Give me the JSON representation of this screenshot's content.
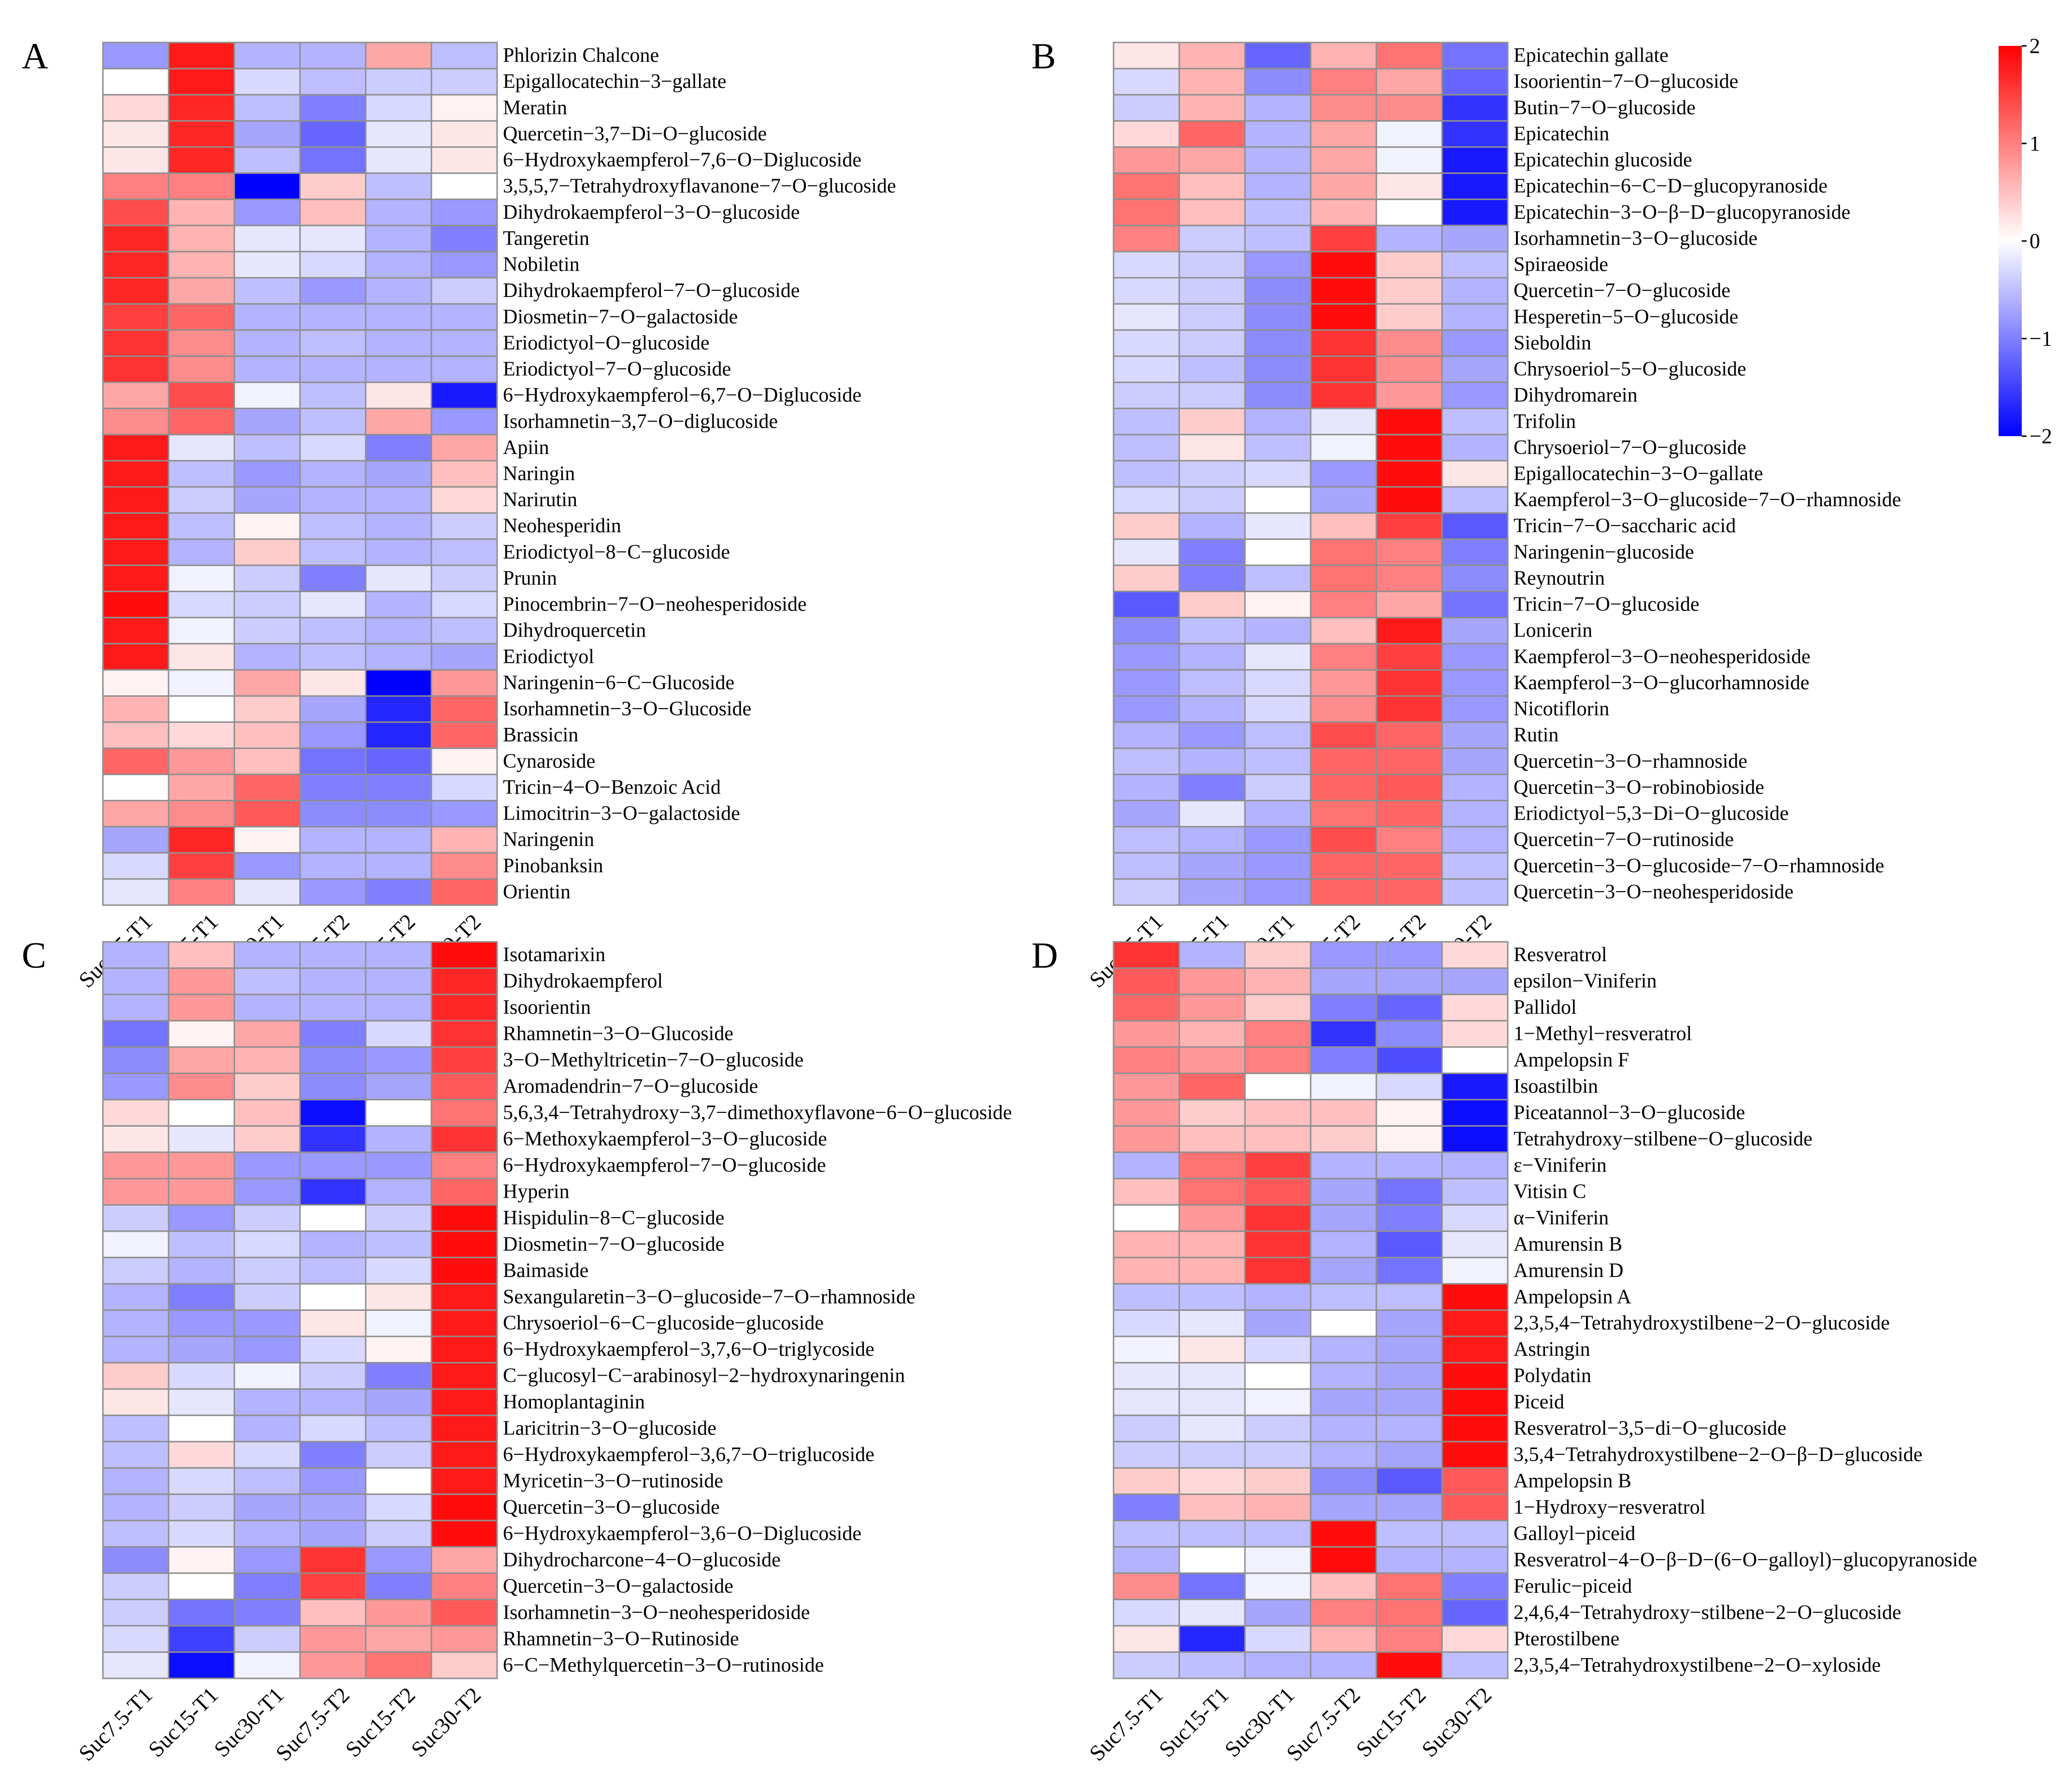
{
  "chart_data": [
    {
      "type": "heatmap",
      "panel_label": "A",
      "columns": [
        "Suc7.5-T1",
        "Suc15-T1",
        "Suc30-T1",
        "Suc7.5-T2",
        "Suc15-T2",
        "Suc30-T2"
      ],
      "rows": [
        "Phlorizin Chalcone",
        "Epigallocatechin−3−gallate",
        "Meratin",
        "Quercetin−3,7−Di−O−glucoside",
        "6−Hydroxykaempferol−7,6−O−Diglucoside",
        "3,5,5,7−Tetrahydroxyflavanone−7−O−glucoside",
        "Dihydrokaempferol−3−O−glucoside",
        "Tangeretin",
        "Nobiletin",
        "Dihydrokaempferol−7−O−glucoside",
        "Diosmetin−7−O−galactoside",
        "Eriodictyol−O−glucoside",
        "Eriodictyol−7−O−glucoside",
        "6−Hydroxykaempferol−6,7−O−Diglucoside",
        "Isorhamnetin−3,7−O−diglucoside",
        "Apiin",
        "Naringin",
        "Narirutin",
        "Neohesperidin",
        "Eriodictyol−8−C−glucoside",
        "Prunin",
        "Pinocembrin−7−O−neohesperidoside",
        "Dihydroquercetin",
        "Eriodictyol",
        "Naringenin−6−C−Glucoside",
        "Isorhamnetin−3−O−Glucoside",
        "Brassicin",
        "Cynaroside",
        "Tricin−4−O−Benzoic Acid",
        "Limocitrin−3−O−galactoside",
        "Naringenin",
        "Pinobanksin",
        "Orientin"
      ],
      "values": [
        [
          -0.8,
          1.8,
          -0.6,
          -0.6,
          0.7,
          -0.5
        ],
        [
          0.0,
          1.8,
          -0.3,
          -0.5,
          -0.4,
          -0.4
        ],
        [
          0.3,
          1.7,
          -0.5,
          -1.0,
          -0.3,
          0.1
        ],
        [
          0.2,
          1.7,
          -0.7,
          -1.2,
          -0.2,
          0.2
        ],
        [
          0.2,
          1.7,
          -0.5,
          -1.1,
          -0.2,
          0.2
        ],
        [
          1.0,
          1.0,
          -2.0,
          0.4,
          -0.5,
          0.0
        ],
        [
          1.4,
          0.6,
          -0.8,
          0.5,
          -0.6,
          -0.8
        ],
        [
          1.7,
          0.6,
          -0.2,
          -0.2,
          -0.6,
          -1.0
        ],
        [
          1.7,
          0.6,
          -0.2,
          -0.3,
          -0.6,
          -0.8
        ],
        [
          1.7,
          0.7,
          -0.5,
          -0.8,
          -0.6,
          -0.4
        ],
        [
          1.5,
          1.2,
          -0.6,
          -0.6,
          -0.6,
          -0.6
        ],
        [
          1.6,
          0.9,
          -0.6,
          -0.5,
          -0.6,
          -0.6
        ],
        [
          1.6,
          0.9,
          -0.6,
          -0.6,
          -0.6,
          -0.6
        ],
        [
          0.7,
          1.4,
          -0.1,
          -0.5,
          0.2,
          -1.8
        ],
        [
          0.9,
          1.2,
          -0.7,
          -0.5,
          0.7,
          -0.8
        ],
        [
          1.8,
          -0.2,
          -0.5,
          -0.3,
          -1.0,
          0.7
        ],
        [
          1.8,
          -0.5,
          -0.8,
          -0.6,
          -0.7,
          0.5
        ],
        [
          1.8,
          -0.4,
          -0.7,
          -0.6,
          -0.6,
          0.3
        ],
        [
          1.8,
          -0.5,
          0.1,
          -0.5,
          -0.6,
          -0.4
        ],
        [
          1.8,
          -0.6,
          0.4,
          -0.5,
          -0.6,
          -0.5
        ],
        [
          1.8,
          -0.1,
          -0.4,
          -1.0,
          -0.2,
          -0.4
        ],
        [
          1.9,
          -0.3,
          -0.4,
          -0.2,
          -0.6,
          -0.3
        ],
        [
          1.8,
          -0.1,
          -0.4,
          -0.5,
          -0.6,
          -0.5
        ],
        [
          1.8,
          0.2,
          -0.6,
          -0.5,
          -0.6,
          -0.7
        ],
        [
          0.1,
          -0.1,
          0.7,
          0.2,
          -2.0,
          0.8
        ],
        [
          0.6,
          0.0,
          0.4,
          -0.7,
          -1.7,
          1.2
        ],
        [
          0.5,
          0.3,
          0.5,
          -0.8,
          -1.7,
          1.2
        ],
        [
          1.2,
          0.8,
          0.5,
          -1.1,
          -1.2,
          0.1
        ],
        [
          0.0,
          0.7,
          1.2,
          -1.0,
          -1.0,
          -0.3
        ],
        [
          0.7,
          0.9,
          1.3,
          -0.9,
          -0.9,
          -0.8
        ],
        [
          -0.7,
          1.7,
          0.1,
          -0.6,
          -0.6,
          0.6
        ],
        [
          -0.3,
          1.5,
          -0.8,
          -0.6,
          -0.6,
          0.9
        ],
        [
          -0.2,
          1.0,
          -0.2,
          -0.8,
          -1.0,
          1.2
        ]
      ]
    },
    {
      "type": "heatmap",
      "panel_label": "B",
      "columns": [
        "Suc7.5-T1",
        "Suc15-T1",
        "Suc30-T1",
        "Suc7.5-T2",
        "Suc15-T2",
        "Suc30-T2"
      ],
      "rows": [
        "Epicatechin gallate",
        "Isoorientin−7−O−glucoside",
        "Butin−7−O−glucoside",
        "Epicatechin",
        "Epicatechin glucoside",
        "Epicatechin−6−C−D−glucopyranoside",
        "Epicatechin−3−O−β−D−glucopyranoside",
        "Isorhamnetin−3−O−glucoside",
        "Spiraeoside",
        "Quercetin−7−O−glucoside",
        "Hesperetin−5−O−glucoside",
        "Sieboldin",
        "Chrysoeriol−5−O−glucoside",
        "Dihydromarein",
        "Trifolin",
        "Chrysoeriol−7−O−glucoside",
        "Epigallocatechin−3−O−gallate",
        "Kaempferol−3−O−glucoside−7−O−rhamnoside",
        "Tricin−7−O−saccharic acid",
        "Naringenin−glucoside",
        "Reynoutrin",
        "Tricin−7−O−glucoside",
        "Lonicerin",
        "Kaempferol−3−O−neohesperidoside",
        "Kaempferol−3−O−glucorhamnoside",
        "Nicotiflorin",
        "Rutin",
        "Quercetin−3−O−rhamnoside",
        "Quercetin−3−O−robinobioside",
        "Eriodictyol−5,3−Di−O−glucoside",
        "Quercetin−7−O−rutinoside",
        "Quercetin−3−O−glucoside−7−O−rhamnoside",
        "Quercetin−3−O−neohesperidoside"
      ],
      "values": [
        [
          0.2,
          0.6,
          -1.2,
          0.6,
          1.1,
          -1.1
        ],
        [
          -0.3,
          0.6,
          -0.9,
          1.0,
          0.7,
          -1.2
        ],
        [
          -0.4,
          0.6,
          -0.6,
          0.9,
          0.9,
          -1.6
        ],
        [
          0.3,
          1.2,
          -0.6,
          0.7,
          -0.1,
          -1.6
        ],
        [
          0.8,
          0.7,
          -0.6,
          0.7,
          -0.1,
          -1.8
        ],
        [
          1.1,
          0.5,
          -0.6,
          0.7,
          0.2,
          -1.8
        ],
        [
          1.1,
          0.5,
          -0.5,
          0.6,
          0.0,
          -1.8
        ],
        [
          1.0,
          -0.4,
          -0.5,
          1.5,
          -0.6,
          -0.7
        ],
        [
          -0.3,
          -0.4,
          -0.8,
          1.9,
          0.4,
          -0.5
        ],
        [
          -0.3,
          -0.4,
          -0.9,
          1.9,
          0.4,
          -0.6
        ],
        [
          -0.2,
          -0.4,
          -0.9,
          1.9,
          0.4,
          -0.6
        ],
        [
          -0.3,
          -0.4,
          -0.9,
          1.6,
          0.9,
          -0.8
        ],
        [
          -0.3,
          -0.5,
          -0.9,
          1.6,
          0.9,
          -0.7
        ],
        [
          -0.4,
          -0.4,
          -0.9,
          1.6,
          0.8,
          -0.8
        ],
        [
          -0.5,
          0.4,
          -0.6,
          -0.2,
          1.9,
          -0.5
        ],
        [
          -0.5,
          0.2,
          -0.5,
          -0.1,
          1.9,
          -0.6
        ],
        [
          -0.5,
          -0.4,
          -0.3,
          -0.8,
          1.9,
          0.2
        ],
        [
          -0.3,
          -0.4,
          0.0,
          -0.7,
          1.9,
          -0.5
        ],
        [
          0.4,
          -0.6,
          -0.2,
          0.5,
          1.5,
          -1.3
        ],
        [
          -0.2,
          -1.0,
          0.0,
          1.1,
          1.0,
          -1.0
        ],
        [
          0.4,
          -1.0,
          -0.5,
          1.1,
          1.0,
          -0.9
        ],
        [
          -1.3,
          0.4,
          0.1,
          1.0,
          0.7,
          -1.1
        ],
        [
          -0.9,
          -0.5,
          -0.6,
          0.5,
          1.8,
          -0.7
        ],
        [
          -0.8,
          -0.6,
          -0.2,
          1.0,
          1.5,
          -0.8
        ],
        [
          -0.8,
          -0.5,
          -0.3,
          0.8,
          1.6,
          -0.8
        ],
        [
          -0.8,
          -0.6,
          -0.3,
          0.9,
          1.6,
          -0.8
        ],
        [
          -0.6,
          -0.8,
          -0.5,
          1.4,
          1.2,
          -0.7
        ],
        [
          -0.5,
          -0.6,
          -0.5,
          1.2,
          1.2,
          -0.7
        ],
        [
          -0.6,
          -1.0,
          -0.4,
          1.2,
          1.3,
          -0.6
        ],
        [
          -0.7,
          -0.2,
          -0.6,
          1.1,
          1.2,
          -0.6
        ],
        [
          -0.5,
          -0.6,
          -0.8,
          1.4,
          1.0,
          -0.6
        ],
        [
          -0.5,
          -0.7,
          -0.8,
          1.2,
          1.2,
          -0.5
        ],
        [
          -0.4,
          -0.7,
          -0.8,
          1.2,
          1.2,
          -0.5
        ]
      ]
    },
    {
      "type": "heatmap",
      "panel_label": "C",
      "columns": [
        "Suc7.5-T1",
        "Suc15-T1",
        "Suc30-T1",
        "Suc7.5-T2",
        "Suc15-T2",
        "Suc30-T2"
      ],
      "rows": [
        "Isotamarixin",
        "Dihydrokaempferol",
        "Isoorientin",
        "Rhamnetin−3−O−Glucoside",
        "3−O−Methyltricetin−7−O−glucoside",
        "Aromadendrin−7−O−glucoside",
        "5,6,3,4−Tetrahydroxy−3,7−dimethoxyflavone−6−O−glucoside",
        "6−Methoxykaempferol−3−O−glucoside",
        "6−Hydroxykaempferol−7−O−glucoside",
        "Hyperin",
        "Hispidulin−8−C−glucoside",
        "Diosmetin−7−O−glucoside",
        "Baimaside",
        "Sexangularetin−3−O−glucoside−7−O−rhamnoside",
        "Chrysoeriol−6−C−glucoside−glucoside",
        "6−Hydroxykaempferol−3,7,6−O−triglycoside",
        "C−glucosyl−C−arabinosyl−2−hydroxynaringenin",
        "Homoplantaginin",
        "Laricitrin−3−O−glucoside",
        "6−Hydroxykaempferol−3,6,7−O−triglucoside",
        "Myricetin−3−O−rutinoside",
        "Quercetin−3−O−glucoside",
        "6−Hydroxykaempferol−3,6−O−Diglucoside",
        "Dihydrocharcone−4−O−glucoside",
        "Quercetin−3−O−galactoside",
        "Isorhamnetin−3−O−neohesperidoside",
        "Rhamnetin−3−O−Rutinoside",
        "6−C−Methylquercetin−3−O−rutinoside"
      ],
      "values": [
        [
          -0.6,
          0.5,
          -0.6,
          -0.6,
          -0.6,
          1.9
        ],
        [
          -0.6,
          0.8,
          -0.5,
          -0.6,
          -0.6,
          1.7
        ],
        [
          -0.6,
          0.8,
          -0.6,
          -0.6,
          -0.6,
          1.7
        ],
        [
          -1.1,
          0.1,
          0.7,
          -1.0,
          -0.3,
          1.6
        ],
        [
          -0.9,
          0.7,
          0.6,
          -0.9,
          -0.8,
          1.5
        ],
        [
          -0.8,
          0.9,
          0.4,
          -0.9,
          -0.7,
          1.3
        ],
        [
          0.3,
          0.0,
          0.5,
          -1.9,
          0.0,
          1.1
        ],
        [
          0.2,
          -0.2,
          0.4,
          -1.6,
          -0.6,
          1.6
        ],
        [
          0.8,
          0.8,
          -0.8,
          -0.8,
          -0.8,
          1.0
        ],
        [
          0.8,
          0.8,
          -0.8,
          -1.6,
          -0.6,
          1.2
        ],
        [
          -0.4,
          -0.8,
          -0.4,
          0.0,
          -0.4,
          1.9
        ],
        [
          -0.1,
          -0.5,
          -0.3,
          -0.6,
          -0.5,
          1.9
        ],
        [
          -0.4,
          -0.6,
          -0.4,
          -0.5,
          -0.3,
          1.9
        ],
        [
          -0.6,
          -1.0,
          -0.4,
          0.0,
          0.2,
          1.8
        ],
        [
          -0.6,
          -0.8,
          -0.8,
          0.2,
          -0.1,
          1.8
        ],
        [
          -0.6,
          -0.7,
          -0.8,
          -0.3,
          0.1,
          1.8
        ],
        [
          0.4,
          -0.3,
          -0.1,
          -0.4,
          -1.0,
          1.8
        ],
        [
          0.2,
          -0.2,
          -0.6,
          -0.6,
          -0.7,
          1.8
        ],
        [
          -0.5,
          0.0,
          -0.6,
          -0.3,
          -0.5,
          1.8
        ],
        [
          -0.5,
          0.3,
          -0.3,
          -1.0,
          -0.4,
          1.8
        ],
        [
          -0.6,
          -0.3,
          -0.5,
          -0.8,
          0.0,
          1.8
        ],
        [
          -0.6,
          -0.4,
          -0.7,
          -0.7,
          -0.3,
          1.9
        ],
        [
          -0.5,
          -0.3,
          -0.6,
          -0.7,
          -0.4,
          1.9
        ],
        [
          -0.9,
          0.1,
          -0.8,
          1.6,
          -0.8,
          0.7
        ],
        [
          -0.4,
          0.0,
          -1.0,
          1.5,
          -1.0,
          1.0
        ],
        [
          -0.4,
          -1.1,
          -1.0,
          0.5,
          0.8,
          1.3
        ],
        [
          -0.3,
          -1.5,
          -0.4,
          0.8,
          0.7,
          0.8
        ],
        [
          -0.2,
          -1.9,
          -0.1,
          0.8,
          1.1,
          0.4
        ]
      ]
    },
    {
      "type": "heatmap",
      "panel_label": "D",
      "columns": [
        "Suc7.5-T1",
        "Suc15-T1",
        "Suc30-T1",
        "Suc7.5-T2",
        "Suc15-T2",
        "Suc30-T2"
      ],
      "rows": [
        "Resveratrol",
        "epsilon−Viniferin",
        "Pallidol",
        "1−Methyl−resveratrol",
        "Ampelopsin F",
        "Isoastilbin",
        "Piceatannol−3−O−glucoside",
        "Tetrahydroxy−stilbene−O−glucoside",
        "ε−Viniferin",
        "Vitisin C",
        "α−Viniferin",
        "Amurensin B",
        "Amurensin D",
        "Ampelopsin A",
        "2,3,5,4−Tetrahydroxystilbene−2−O−glucoside",
        "Astringin",
        "Polydatin",
        "Piceid",
        "Resveratrol−3,5−di−O−glucoside",
        "3,5,4−Tetrahydroxystilbene−2−O−β−D−glucoside",
        "Ampelopsin B",
        "1−Hydroxy−resveratrol",
        "Galloyl−piceid",
        "Resveratrol−4−O−β−D−(6−O−galloyl)−glucopyranoside",
        "Ferulic−piceid",
        "2,4,6,4−Tetrahydroxy−stilbene−2−O−glucoside",
        "Pterostilbene",
        "2,3,5,4−Tetrahydroxystilbene−2−O−xyloside"
      ],
      "values": [
        [
          1.6,
          -0.6,
          0.4,
          -0.8,
          -0.8,
          0.3
        ],
        [
          1.3,
          0.8,
          0.6,
          -0.7,
          -0.7,
          -0.7
        ],
        [
          1.2,
          0.8,
          0.4,
          -1.0,
          -1.2,
          0.3
        ],
        [
          0.8,
          0.6,
          1.0,
          -1.6,
          -0.9,
          0.3
        ],
        [
          1.0,
          0.8,
          1.0,
          -1.0,
          -1.4,
          0.0
        ],
        [
          0.8,
          1.2,
          0.0,
          -0.1,
          -0.3,
          -1.8
        ],
        [
          0.8,
          0.4,
          0.5,
          0.5,
          0.1,
          -1.9
        ],
        [
          0.8,
          0.5,
          0.5,
          0.4,
          0.1,
          -1.9
        ],
        [
          -0.6,
          1.1,
          1.5,
          -0.6,
          -0.6,
          -0.6
        ],
        [
          0.5,
          1.1,
          1.3,
          -0.7,
          -1.1,
          -0.5
        ],
        [
          0.0,
          0.8,
          1.6,
          -0.7,
          -1.0,
          -0.3
        ],
        [
          0.6,
          0.6,
          1.6,
          -0.6,
          -1.3,
          -0.2
        ],
        [
          0.6,
          0.6,
          1.6,
          -0.7,
          -1.1,
          -0.1
        ],
        [
          -0.5,
          -0.5,
          -0.6,
          -0.5,
          -0.5,
          1.9
        ],
        [
          -0.3,
          -0.2,
          -0.7,
          0.0,
          -0.7,
          1.8
        ],
        [
          -0.1,
          0.2,
          -0.3,
          -0.6,
          -0.7,
          1.8
        ],
        [
          -0.2,
          -0.2,
          0.0,
          -0.6,
          -0.7,
          1.9
        ],
        [
          -0.2,
          -0.2,
          -0.1,
          -0.7,
          -0.7,
          1.9
        ],
        [
          -0.4,
          -0.2,
          -0.4,
          -0.6,
          -0.6,
          1.9
        ],
        [
          -0.4,
          -0.4,
          -0.4,
          -0.6,
          -0.7,
          1.9
        ],
        [
          0.4,
          0.3,
          0.4,
          -0.9,
          -1.3,
          1.3
        ],
        [
          -1.0,
          0.5,
          0.6,
          -0.7,
          -0.7,
          1.3
        ],
        [
          -0.5,
          -0.5,
          -0.5,
          1.9,
          -0.5,
          -0.5
        ],
        [
          -0.6,
          0.0,
          -0.1,
          1.9,
          -0.6,
          -0.6
        ],
        [
          0.9,
          -1.1,
          -0.1,
          0.5,
          1.1,
          -1.0
        ],
        [
          -0.3,
          -0.2,
          -0.7,
          1.0,
          1.1,
          -1.2
        ],
        [
          0.2,
          -1.7,
          -0.3,
          0.6,
          1.0,
          0.3
        ],
        [
          -0.4,
          -0.5,
          -0.6,
          -0.6,
          1.9,
          -0.5
        ]
      ]
    }
  ],
  "legend": {
    "ticks": [
      "2",
      "1",
      "0",
      "−1",
      "−2"
    ],
    "tick_values": [
      2,
      1,
      0,
      -1,
      -2
    ],
    "min": -2,
    "max": 2,
    "colors": {
      "low": "#0000ff",
      "mid": "#ffffff",
      "high": "#ff0000"
    }
  }
}
